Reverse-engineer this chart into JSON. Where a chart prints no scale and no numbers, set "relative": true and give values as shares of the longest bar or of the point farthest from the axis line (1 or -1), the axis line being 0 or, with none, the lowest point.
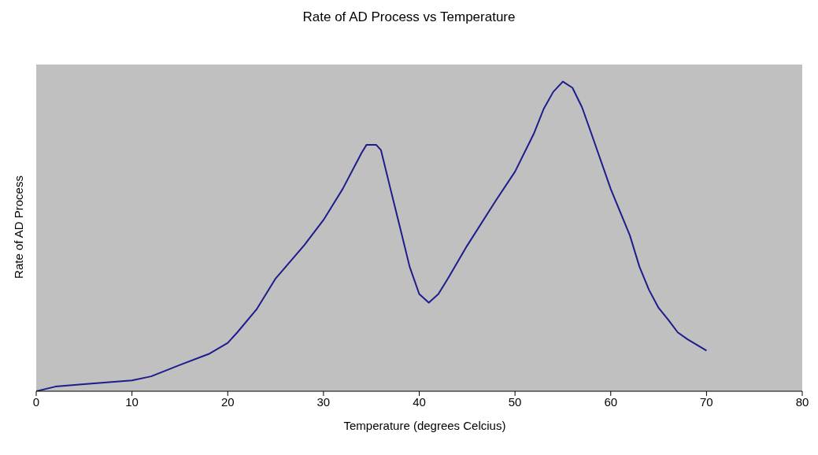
{
  "chart_data": {
    "type": "line",
    "title": "Rate of AD Process vs Temperature",
    "xlabel": "Temperature (degrees Celcius)",
    "ylabel": "Rate of AD Process",
    "relative": true,
    "xlim": [
      0,
      80
    ],
    "xticks": [
      0,
      10,
      20,
      30,
      40,
      50,
      60,
      70,
      80
    ],
    "grid": false,
    "marker": "none",
    "line_style": "solid",
    "series": [
      {
        "color": "#1c1c8c",
        "x": [
          0,
          2,
          5,
          10,
          12,
          15,
          18,
          20,
          21,
          23,
          25,
          28,
          30,
          32,
          34,
          34.5,
          35.5,
          36,
          37,
          38,
          39,
          40,
          41,
          42,
          43,
          45,
          48,
          50,
          52,
          53,
          54,
          55,
          56,
          57,
          58,
          60,
          62,
          63,
          64,
          65,
          66,
          67,
          68,
          70
        ],
        "values": [
          0,
          0.015,
          0.023,
          0.035,
          0.048,
          0.085,
          0.12,
          0.156,
          0.19,
          0.264,
          0.364,
          0.472,
          0.553,
          0.653,
          0.771,
          0.796,
          0.796,
          0.779,
          0.653,
          0.528,
          0.402,
          0.314,
          0.286,
          0.314,
          0.364,
          0.47,
          0.616,
          0.709,
          0.834,
          0.912,
          0.967,
          1,
          0.98,
          0.917,
          0.83,
          0.653,
          0.503,
          0.402,
          0.327,
          0.269,
          0.231,
          0.19,
          0.168,
          0.131
        ]
      }
    ]
  }
}
